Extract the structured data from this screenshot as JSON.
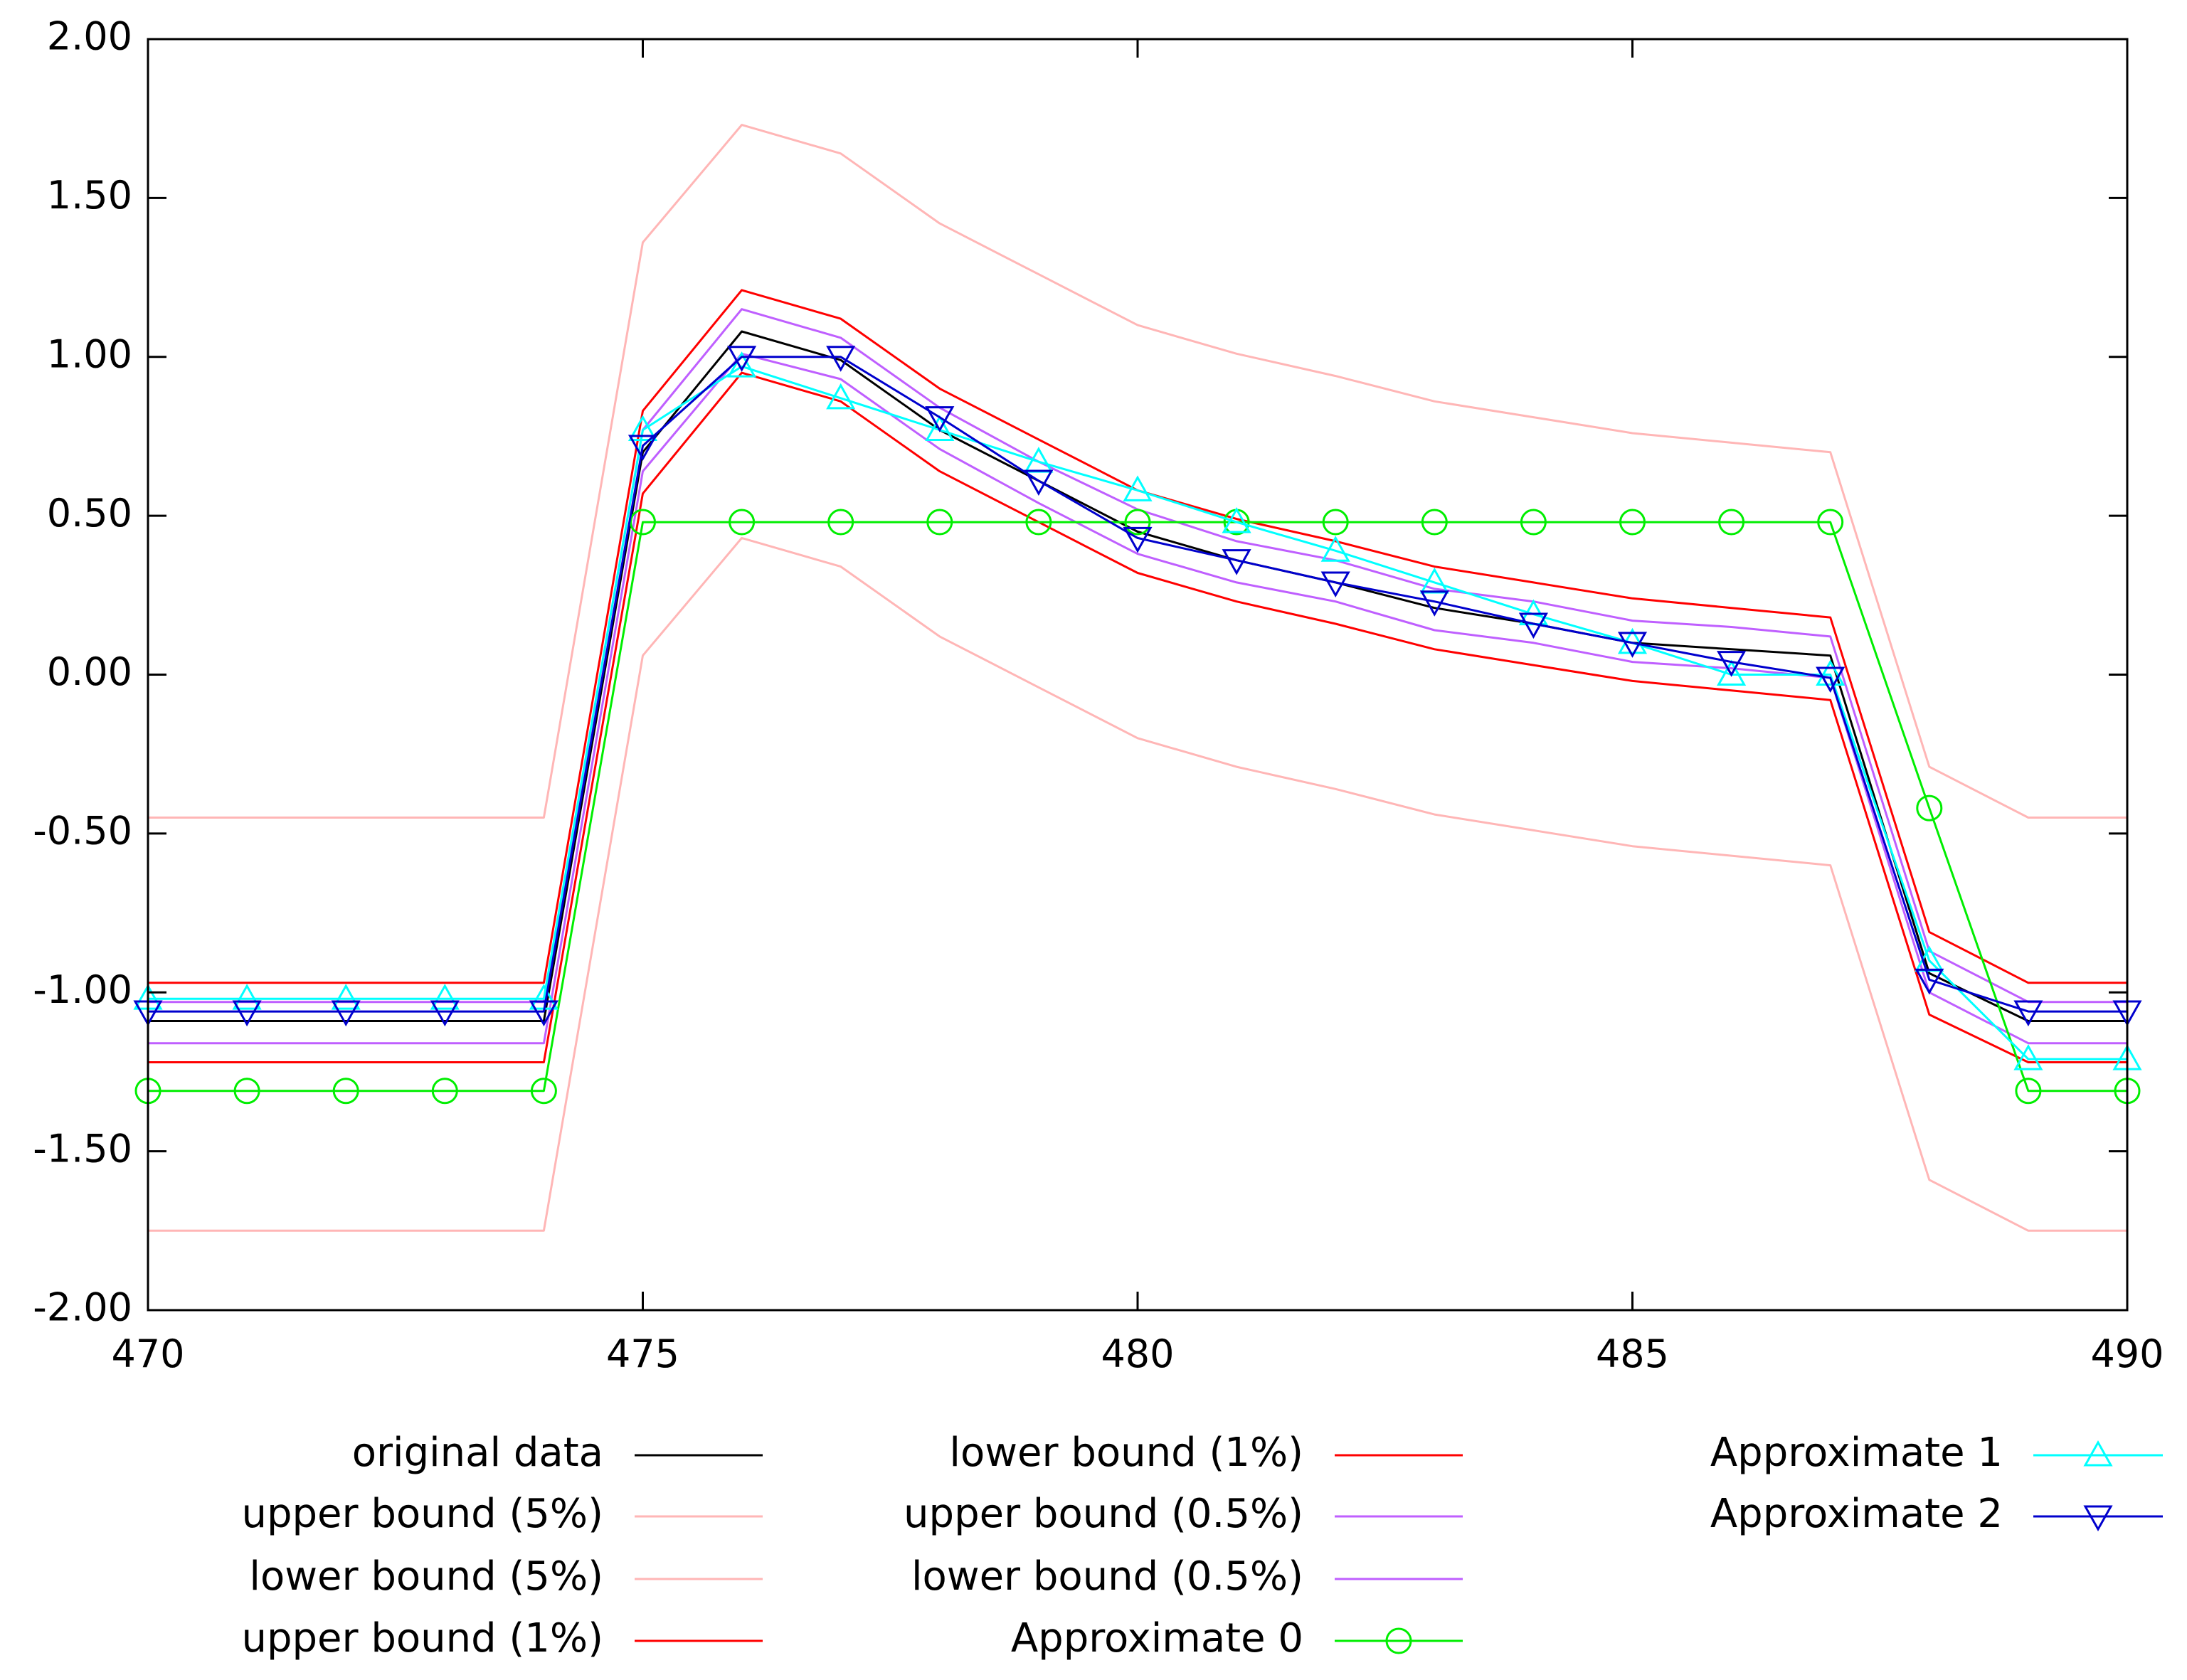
{
  "chart_data": {
    "type": "line",
    "title": "",
    "xlabel": "",
    "ylabel": "",
    "xlim": [
      470,
      490
    ],
    "ylim": [
      -2.0,
      2.0
    ],
    "grid": false,
    "legend_position": "bottom",
    "x_ticks": [
      470,
      475,
      480,
      485,
      490
    ],
    "x_tick_labels": [
      "470",
      "475",
      "480",
      "485",
      "490"
    ],
    "y_ticks": [
      2.0,
      1.5,
      1.0,
      0.5,
      0.0,
      -0.5,
      -1.0,
      -1.5,
      -2.0
    ],
    "y_tick_labels": [
      "2.00",
      "1.50",
      "1.00",
      "0.50",
      "0.00",
      "-0.50",
      "-1.00",
      "-1.50",
      "-2.00"
    ],
    "x": [
      470,
      471,
      472,
      473,
      474,
      475,
      476,
      477,
      478,
      479,
      480,
      481,
      482,
      483,
      484,
      485,
      486,
      487,
      488,
      489,
      490
    ],
    "series": [
      {
        "name": "original data",
        "color": "#000000",
        "marker": "none",
        "legend_col": 0,
        "legend_row": 0,
        "values": [
          -1.09,
          -1.09,
          -1.09,
          -1.09,
          -1.09,
          0.7,
          1.08,
          0.99,
          0.77,
          0.61,
          0.45,
          0.36,
          0.29,
          0.21,
          0.16,
          0.1,
          0.08,
          0.06,
          -0.94,
          -1.09,
          -1.09
        ]
      },
      {
        "name": "upper bound (5%)",
        "color": "#ffb6b6",
        "marker": "none",
        "legend_col": 0,
        "legend_row": 1,
        "values": [
          -0.45,
          -0.45,
          -0.45,
          -0.45,
          -0.45,
          1.36,
          1.73,
          1.64,
          1.42,
          1.26,
          1.1,
          1.01,
          0.94,
          0.86,
          0.81,
          0.76,
          0.73,
          0.7,
          -0.29,
          -0.45,
          -0.45
        ]
      },
      {
        "name": "lower bound (5%)",
        "color": "#ffb6b6",
        "marker": "none",
        "legend_col": 0,
        "legend_row": 2,
        "values": [
          -1.75,
          -1.75,
          -1.75,
          -1.75,
          -1.75,
          0.06,
          0.43,
          0.34,
          0.12,
          -0.04,
          -0.2,
          -0.29,
          -0.36,
          -0.44,
          -0.49,
          -0.54,
          -0.57,
          -0.6,
          -1.59,
          -1.75,
          -1.75
        ]
      },
      {
        "name": "upper bound (1%)",
        "color": "#ff0000",
        "marker": "none",
        "legend_col": 0,
        "legend_row": 3,
        "values": [
          -0.97,
          -0.97,
          -0.97,
          -0.97,
          -0.97,
          0.83,
          1.21,
          1.12,
          0.9,
          0.74,
          0.58,
          0.49,
          0.42,
          0.34,
          0.29,
          0.24,
          0.21,
          0.18,
          -0.81,
          -0.97,
          -0.97
        ]
      },
      {
        "name": "lower bound (1%)",
        "color": "#ff0000",
        "marker": "none",
        "legend_col": 1,
        "legend_row": 0,
        "values": [
          -1.22,
          -1.22,
          -1.22,
          -1.22,
          -1.22,
          0.57,
          0.95,
          0.86,
          0.64,
          0.48,
          0.32,
          0.23,
          0.16,
          0.08,
          0.03,
          -0.02,
          -0.05,
          -0.08,
          -1.07,
          -1.22,
          -1.22
        ]
      },
      {
        "name": "upper bound (0.5%)",
        "color": "#bf5fff",
        "marker": "none",
        "legend_col": 1,
        "legend_row": 1,
        "values": [
          -1.03,
          -1.03,
          -1.03,
          -1.03,
          -1.03,
          0.77,
          1.15,
          1.06,
          0.84,
          0.67,
          0.52,
          0.42,
          0.36,
          0.27,
          0.23,
          0.17,
          0.15,
          0.12,
          -0.87,
          -1.03,
          -1.03
        ]
      },
      {
        "name": "lower bound (0.5%)",
        "color": "#bf5fff",
        "marker": "none",
        "legend_col": 1,
        "legend_row": 2,
        "values": [
          -1.16,
          -1.16,
          -1.16,
          -1.16,
          -1.16,
          0.64,
          1.01,
          0.93,
          0.71,
          0.54,
          0.38,
          0.29,
          0.23,
          0.14,
          0.1,
          0.04,
          0.02,
          -0.01,
          -1.0,
          -1.16,
          -1.16
        ]
      },
      {
        "name": "Approximate 0",
        "color": "#00ee00",
        "marker": "circle",
        "legend_col": 1,
        "legend_row": 3,
        "values": [
          -1.31,
          -1.31,
          -1.31,
          -1.31,
          -1.31,
          0.48,
          0.48,
          0.48,
          0.48,
          0.48,
          0.48,
          0.48,
          0.48,
          0.48,
          0.48,
          0.48,
          0.48,
          0.48,
          -0.42,
          -1.31,
          -1.31
        ]
      },
      {
        "name": "Approximate 1",
        "color": "#00ffff",
        "marker": "triangle-up",
        "legend_col": 2,
        "legend_row": 0,
        "values": [
          -1.02,
          -1.02,
          -1.02,
          -1.02,
          -1.02,
          0.77,
          0.97,
          0.87,
          0.77,
          0.67,
          0.58,
          0.48,
          0.39,
          0.29,
          0.19,
          0.1,
          0.0,
          0.0,
          -0.9,
          -1.21,
          -1.21
        ]
      },
      {
        "name": "Approximate 2",
        "color": "#0000cd",
        "marker": "triangle-down",
        "legend_col": 2,
        "legend_row": 1,
        "values": [
          -1.06,
          -1.06,
          -1.06,
          -1.06,
          -1.06,
          0.72,
          1.0,
          1.0,
          0.81,
          0.61,
          0.43,
          0.36,
          0.29,
          0.23,
          0.16,
          0.1,
          0.04,
          -0.01,
          -0.96,
          -1.06,
          -1.06
        ]
      }
    ]
  }
}
